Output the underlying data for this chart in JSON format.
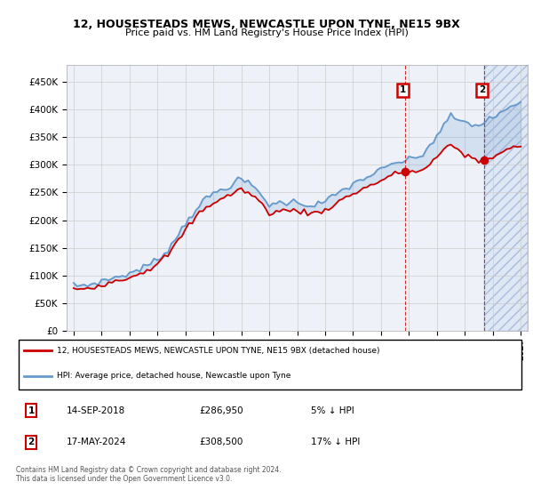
{
  "title": "12, HOUSESTEADS MEWS, NEWCASTLE UPON TYNE, NE15 9BX",
  "subtitle": "Price paid vs. HM Land Registry's House Price Index (HPI)",
  "legend_line1": "12, HOUSESTEADS MEWS, NEWCASTLE UPON TYNE, NE15 9BX (detached house)",
  "legend_line2": "HPI: Average price, detached house, Newcastle upon Tyne",
  "annotation1_label": "1",
  "annotation1_date": "14-SEP-2018",
  "annotation1_price": "£286,950",
  "annotation1_pct": "5% ↓ HPI",
  "annotation2_label": "2",
  "annotation2_date": "17-MAY-2024",
  "annotation2_price": "£308,500",
  "annotation2_pct": "17% ↓ HPI",
  "footnote": "Contains HM Land Registry data © Crown copyright and database right 2024.\nThis data is licensed under the Open Government Licence v3.0.",
  "hpi_color": "#6699cc",
  "price_color": "#cc0000",
  "annotation_box_color": "#cc0000",
  "grid_color": "#cccccc",
  "ylim": [
    0,
    480000
  ],
  "yticks": [
    0,
    50000,
    100000,
    150000,
    200000,
    250000,
    300000,
    350000,
    400000,
    450000
  ],
  "sale1_year": 2018.71,
  "sale1_price": 286950,
  "sale2_year": 2024.38,
  "sale2_price": 308500,
  "xlim_left": 1994.5,
  "xlim_right": 2027.5
}
